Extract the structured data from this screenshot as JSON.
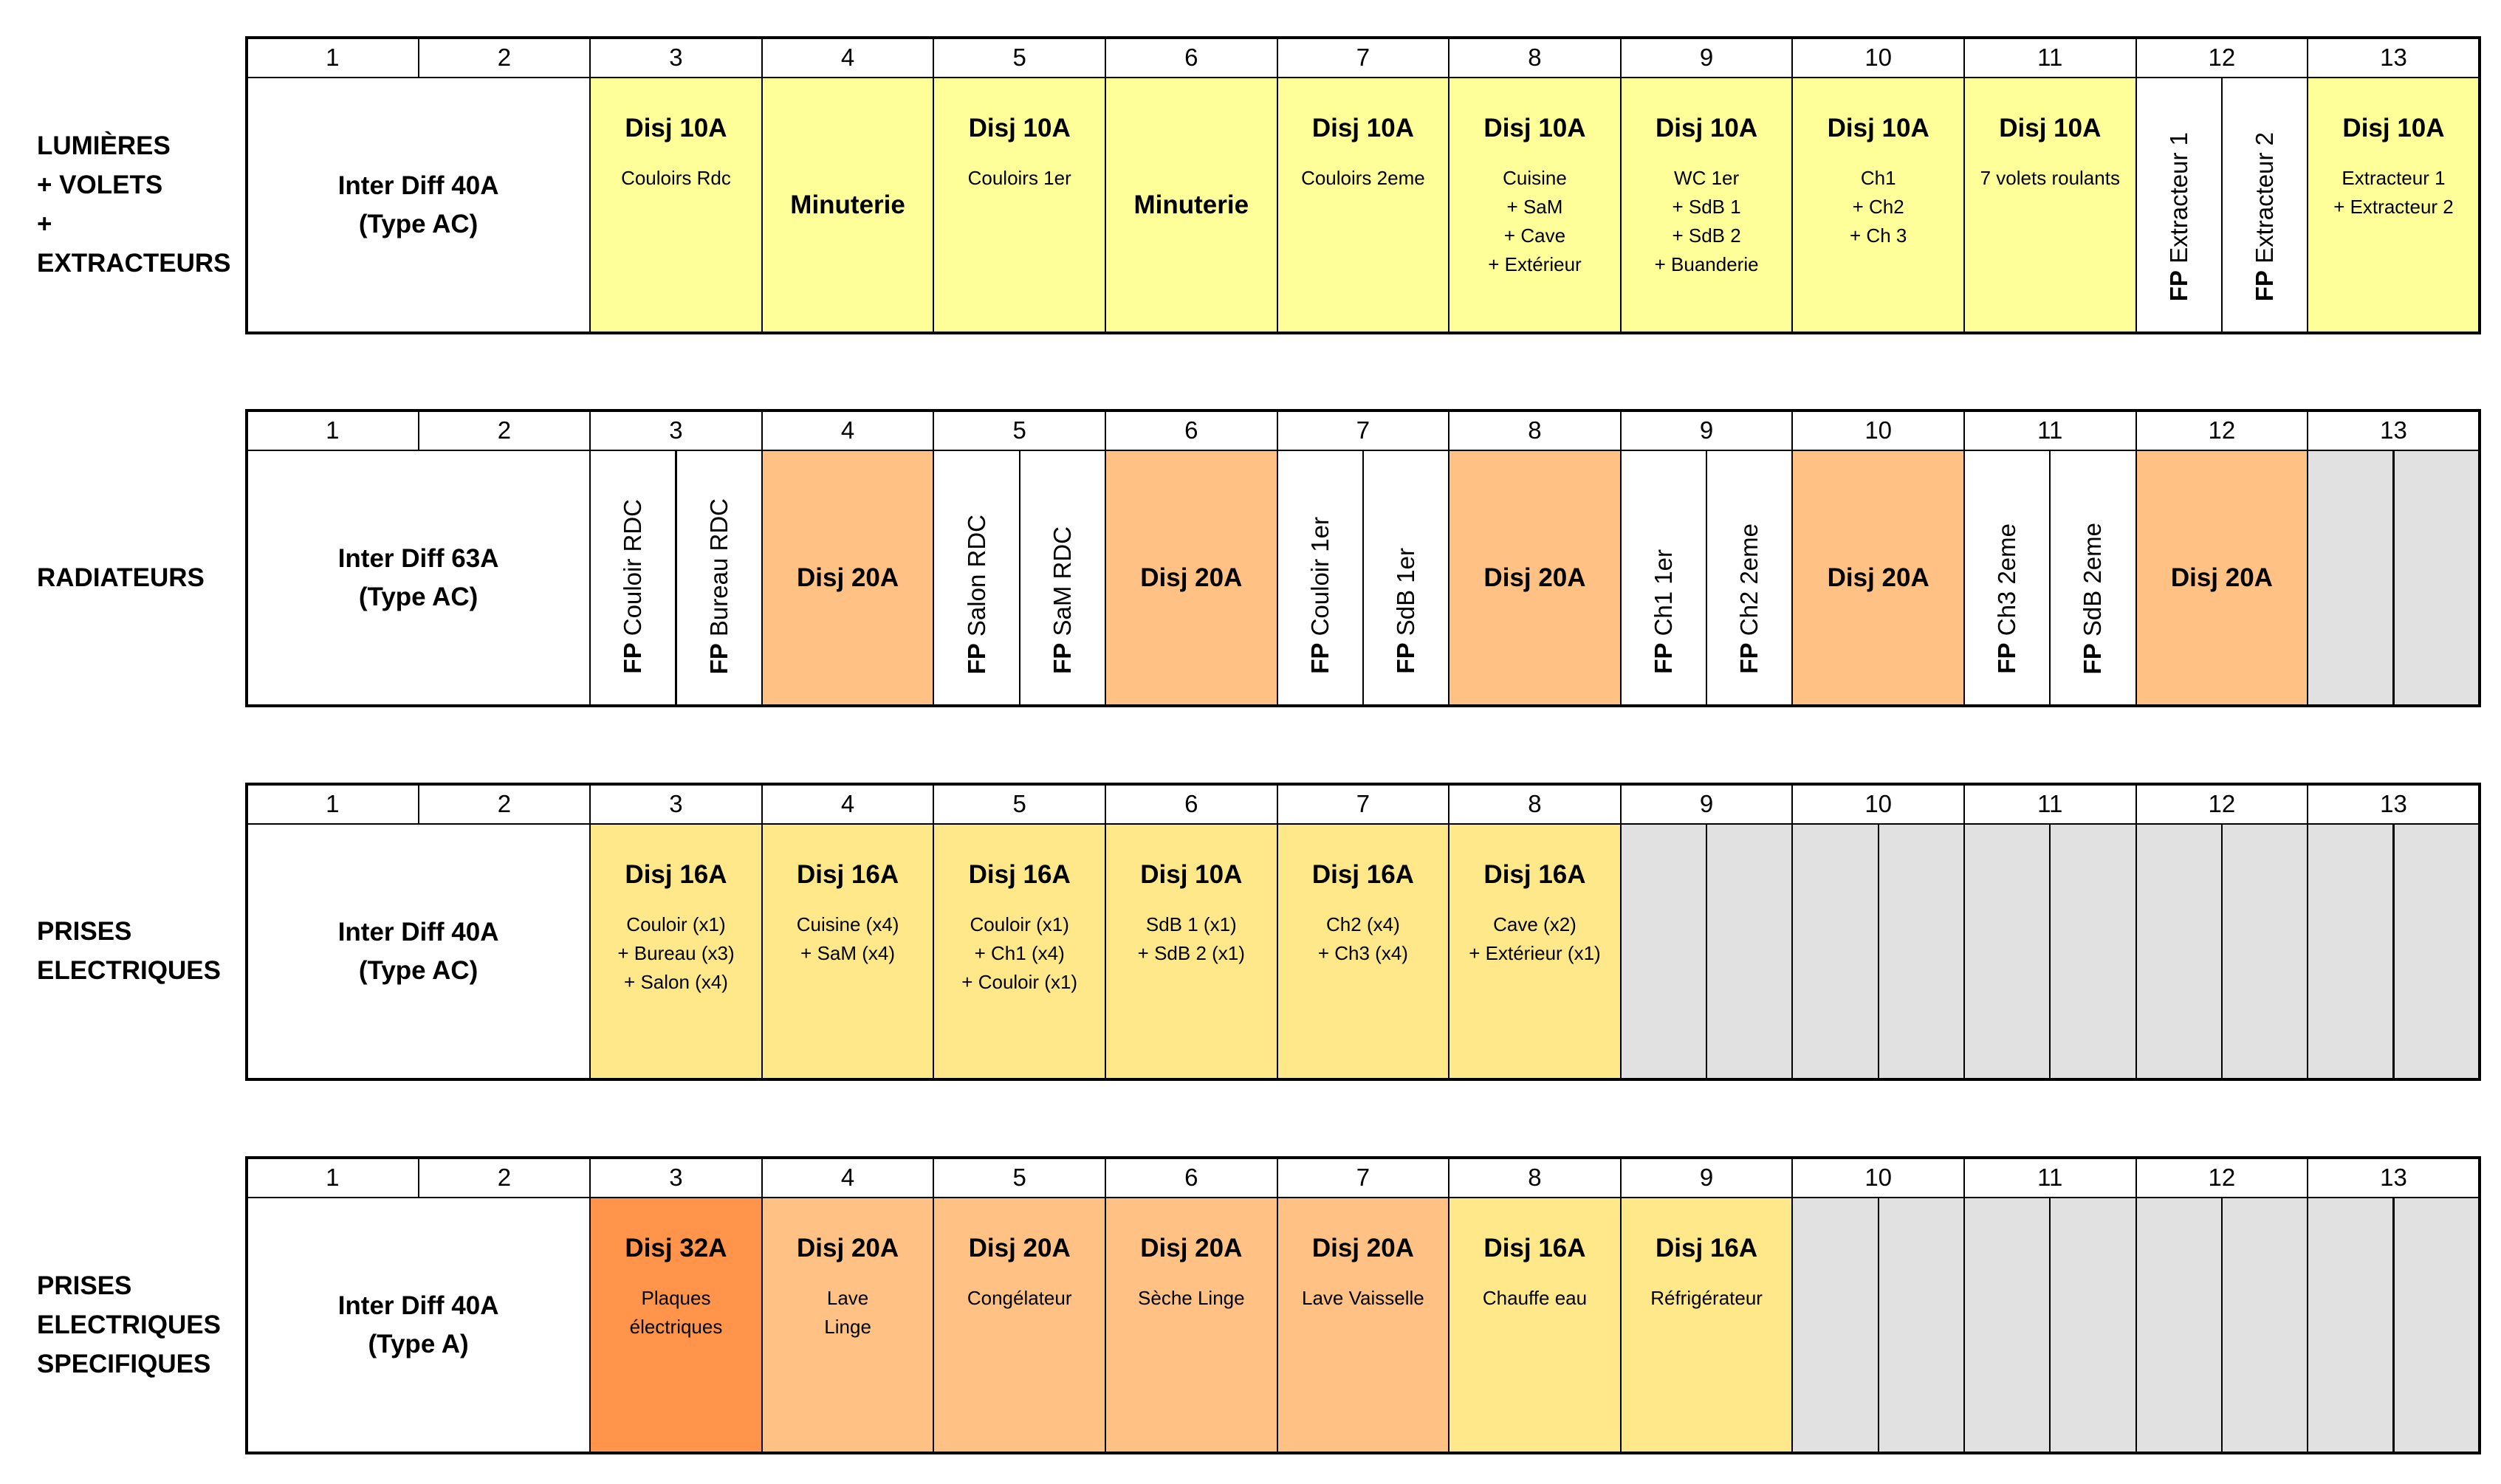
{
  "colors": {
    "yellow": "#FFFF9A",
    "light_yellow": "#FFE88A",
    "light_orange": "#FFC184",
    "orange": "#FF944A",
    "gray": "#E1E1E1",
    "white": "#FFFFFF"
  },
  "slot_numbers": [
    "1",
    "2",
    "3",
    "4",
    "5",
    "6",
    "7",
    "8",
    "9",
    "10",
    "11",
    "12",
    "13"
  ],
  "rows": [
    {
      "label": [
        "LUMIÈRES",
        "+ VOLETS",
        "+ EXTRACTEURS"
      ],
      "cells": [
        {
          "type": "inter",
          "span": 2,
          "lines": [
            "Inter Diff 40A",
            "(Type AC)"
          ]
        },
        {
          "type": "disj",
          "color": "yellow",
          "title": "Disj 10A",
          "desc": "Couloirs Rdc"
        },
        {
          "type": "center",
          "color": "yellow",
          "text": "Minuterie"
        },
        {
          "type": "disj",
          "color": "yellow",
          "title": "Disj 10A",
          "desc": "Couloirs 1er"
        },
        {
          "type": "center",
          "color": "yellow",
          "text": "Minuterie"
        },
        {
          "type": "disj",
          "color": "yellow",
          "title": "Disj 10A",
          "desc": "Couloirs 2eme"
        },
        {
          "type": "disj",
          "color": "yellow",
          "title": "Disj 10A",
          "desc": "Cuisine\n+ SaM\n+ Cave\n+ Extérieur"
        },
        {
          "type": "disj",
          "color": "yellow",
          "title": "Disj 10A",
          "desc": "WC 1er\n+ SdB 1\n+ SdB 2\n+ Buanderie"
        },
        {
          "type": "disj",
          "color": "yellow",
          "title": "Disj 10A",
          "desc": "Ch1\n+ Ch2\n+ Ch 3"
        },
        {
          "type": "disj",
          "color": "yellow",
          "title": "Disj 10A",
          "desc": "7 volets roulants"
        },
        {
          "type": "fp",
          "color": "white",
          "fp": "FP",
          "text": "Extracteur 1"
        },
        {
          "type": "fp",
          "color": "white",
          "fp": "FP",
          "text": "Extracteur 2"
        },
        {
          "type": "disj",
          "color": "yellow",
          "title": "Disj 10A",
          "desc": "Extracteur 1\n+ Extracteur 2"
        }
      ]
    },
    {
      "label": [
        "RADIATEURS"
      ],
      "cells": [
        {
          "type": "inter",
          "span": 2,
          "lines": [
            "Inter Diff 63A",
            "(Type AC)"
          ]
        },
        {
          "type": "fp",
          "color": "white",
          "fp": "FP",
          "text": "Couloir RDC"
        },
        {
          "type": "fp",
          "color": "white",
          "fp": "FP",
          "text": "Bureau RDC"
        },
        {
          "type": "center",
          "color": "light_orange",
          "text": "Disj 20A",
          "span": 2
        },
        {
          "type": "fp",
          "color": "white",
          "fp": "FP",
          "text": "Salon RDC"
        },
        {
          "type": "fp",
          "color": "white",
          "fp": "FP",
          "text": "SaM RDC"
        },
        {
          "type": "center",
          "color": "light_orange",
          "text": "Disj 20A",
          "span": 2
        },
        {
          "type": "fp",
          "color": "white",
          "fp": "FP",
          "text": "Couloir 1er"
        },
        {
          "type": "fp",
          "color": "white",
          "fp": "FP",
          "text": "SdB 1er"
        },
        {
          "type": "center",
          "color": "light_orange",
          "text": "Disj 20A",
          "span": 2
        },
        {
          "type": "fp",
          "color": "white",
          "fp": "FP",
          "text": "Ch1 1er"
        },
        {
          "type": "fp",
          "color": "white",
          "fp": "FP",
          "text": "Ch2 2eme"
        },
        {
          "type": "center",
          "color": "light_orange",
          "text": "Disj 20A",
          "span": 2
        },
        {
          "type": "fp",
          "color": "white",
          "fp": "FP",
          "text": "Ch3 2eme"
        },
        {
          "type": "fp",
          "color": "white",
          "fp": "FP",
          "text": "SdB 2eme"
        },
        {
          "type": "center",
          "color": "light_orange",
          "text": "Disj 20A",
          "span": 2
        },
        {
          "type": "empty",
          "color": "gray"
        },
        {
          "type": "empty",
          "color": "gray"
        }
      ]
    },
    {
      "label": [
        "PRISES",
        "ELECTRIQUES"
      ],
      "cells": [
        {
          "type": "inter",
          "span": 2,
          "lines": [
            "Inter Diff 40A",
            "(Type AC)"
          ]
        },
        {
          "type": "disj",
          "color": "light_yellow",
          "title": "Disj 16A",
          "desc": "Couloir (x1)\n+ Bureau (x3)\n+ Salon (x4)"
        },
        {
          "type": "disj",
          "color": "light_yellow",
          "title": "Disj 16A",
          "desc": "Cuisine (x4)\n+ SaM (x4)"
        },
        {
          "type": "disj",
          "color": "light_yellow",
          "title": "Disj 16A",
          "desc": "Couloir (x1)\n+ Ch1 (x4)\n+ Couloir (x1)"
        },
        {
          "type": "disj",
          "color": "light_yellow",
          "title": "Disj 10A",
          "desc": "SdB 1 (x1)\n+ SdB 2 (x1)"
        },
        {
          "type": "disj",
          "color": "light_yellow",
          "title": "Disj 16A",
          "desc": "Ch2 (x4)\n+ Ch3 (x4)"
        },
        {
          "type": "disj",
          "color": "light_yellow",
          "title": "Disj 16A",
          "desc": "Cave (x2)\n+ Extérieur (x1)"
        },
        {
          "type": "empty",
          "color": "gray"
        },
        {
          "type": "empty",
          "color": "gray"
        },
        {
          "type": "empty",
          "color": "gray"
        },
        {
          "type": "empty",
          "color": "gray"
        },
        {
          "type": "empty",
          "color": "gray"
        },
        {
          "type": "empty",
          "color": "gray"
        },
        {
          "type": "empty",
          "color": "gray"
        },
        {
          "type": "empty",
          "color": "gray"
        },
        {
          "type": "empty",
          "color": "gray"
        },
        {
          "type": "empty",
          "color": "gray"
        }
      ]
    },
    {
      "label": [
        "PRISES",
        "ELECTRIQUES",
        "SPECIFIQUES"
      ],
      "cells": [
        {
          "type": "inter",
          "span": 2,
          "lines": [
            "Inter Diff 40A",
            "(Type A)"
          ]
        },
        {
          "type": "disj",
          "color": "orange",
          "title": "Disj 32A",
          "desc": "Plaques\nélectriques"
        },
        {
          "type": "disj",
          "color": "light_orange",
          "title": "Disj 20A",
          "desc": "Lave\nLinge"
        },
        {
          "type": "disj",
          "color": "light_orange",
          "title": "Disj 20A",
          "desc": "Congélateur"
        },
        {
          "type": "disj",
          "color": "light_orange",
          "title": "Disj 20A",
          "desc": "Sèche Linge"
        },
        {
          "type": "disj",
          "color": "light_orange",
          "title": "Disj 20A",
          "desc": "Lave Vaisselle"
        },
        {
          "type": "disj",
          "color": "light_yellow",
          "title": "Disj 16A",
          "desc": "Chauffe eau"
        },
        {
          "type": "disj",
          "color": "light_yellow",
          "title": "Disj 16A",
          "desc": "Réfrigérateur"
        },
        {
          "type": "empty",
          "color": "gray"
        },
        {
          "type": "empty",
          "color": "gray"
        },
        {
          "type": "empty",
          "color": "gray"
        },
        {
          "type": "empty",
          "color": "gray"
        },
        {
          "type": "empty",
          "color": "gray"
        },
        {
          "type": "empty",
          "color": "gray"
        },
        {
          "type": "empty",
          "color": "gray"
        },
        {
          "type": "empty",
          "color": "gray"
        }
      ]
    }
  ]
}
